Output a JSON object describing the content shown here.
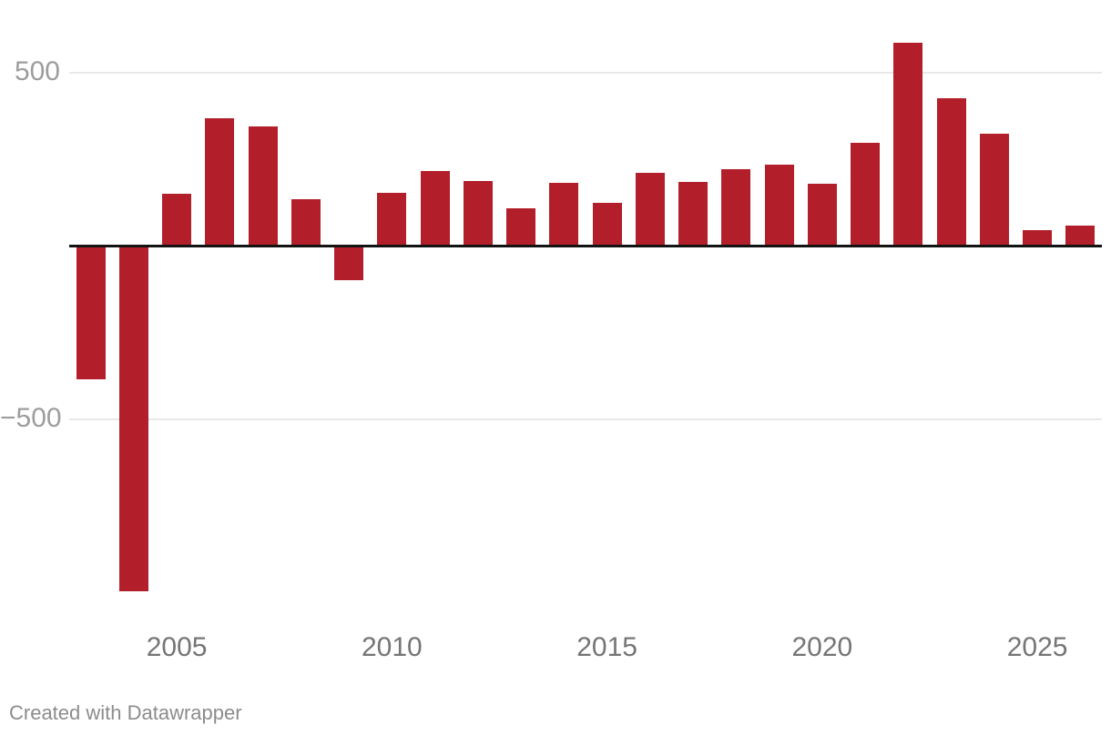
{
  "chart_data": {
    "type": "bar",
    "title": "",
    "xlabel": "",
    "ylabel": "",
    "x": [
      2003,
      2004,
      2005,
      2006,
      2007,
      2008,
      2009,
      2010,
      2011,
      2012,
      2013,
      2014,
      2015,
      2016,
      2017,
      2018,
      2019,
      2020,
      2021,
      2022,
      2023,
      2024,
      2025,
      2026
    ],
    "values": [
      -379,
      -992,
      150,
      368,
      344,
      134,
      -94,
      152,
      216,
      186,
      107,
      181,
      123,
      210,
      183,
      220,
      233,
      178,
      296,
      585,
      425,
      322,
      45,
      58
    ],
    "x_ticks": [
      {
        "year": 2005,
        "label": "2005"
      },
      {
        "year": 2010,
        "label": "2010"
      },
      {
        "year": 2015,
        "label": "2015"
      },
      {
        "year": 2020,
        "label": "2020"
      },
      {
        "year": 2025,
        "label": "2025"
      }
    ],
    "y_ticks": [
      {
        "value": 500,
        "label": "500"
      },
      {
        "value": -500,
        "label": "−500"
      }
    ],
    "ylim": [
      -1100,
      710
    ],
    "grid": "horizontal-y-ticks-only",
    "legend": "none",
    "colors": {
      "bar": "#b21f2a",
      "zero_line": "#131313",
      "gridline": "#e8e8e8",
      "y_tick_label": "#9d9d9d",
      "x_tick_label": "#757575",
      "attribution": "#8c8c8c"
    }
  },
  "footer": {
    "attribution": "Created with Datawrapper"
  }
}
